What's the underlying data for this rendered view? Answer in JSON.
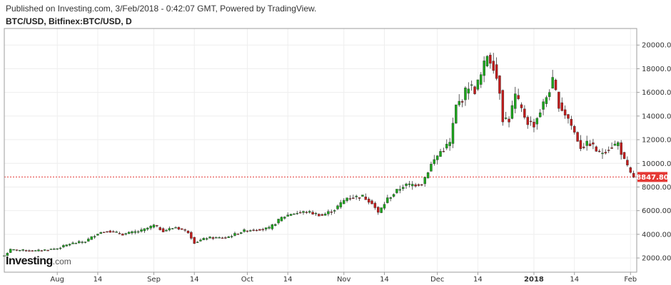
{
  "header": {
    "published": "Published on Investing.com, 3/Feb/2018 - 0:42:07 GMT, Powered by TradingView.",
    "symbol": "BTC/USD, Bitfinex:BTC/USD, D"
  },
  "logo": {
    "brand": "Investing",
    "suffix": ".com"
  },
  "colors": {
    "up": "#1ba51b",
    "down": "#c11b1b",
    "wick": "#333333",
    "grid": "#eeeeee",
    "price_line": "#e53935",
    "price_tag": "#e53935"
  },
  "chart_data": {
    "type": "candlestick",
    "y_ticks": [
      "2000.00",
      "4000.00",
      "6000.00",
      "8000.00",
      "10000.00",
      "12000.00",
      "14000.00",
      "16000.00",
      "18000.00",
      "20000.00"
    ],
    "ylim": [
      800,
      21400
    ],
    "x_ticks": [
      {
        "label": "Aug",
        "date": "2017-08-01"
      },
      {
        "label": "14",
        "date": "2017-08-14"
      },
      {
        "label": "Sep",
        "date": "2017-09-01"
      },
      {
        "label": "14",
        "date": "2017-09-14"
      },
      {
        "label": "Oct",
        "date": "2017-10-01"
      },
      {
        "label": "14",
        "date": "2017-10-14"
      },
      {
        "label": "Nov",
        "date": "2017-11-01"
      },
      {
        "label": "14",
        "date": "2017-11-14"
      },
      {
        "label": "Dec",
        "date": "2017-12-01"
      },
      {
        "label": "14",
        "date": "2017-12-14"
      },
      {
        "label": "2018",
        "date": "2018-01-01",
        "bold": true
      },
      {
        "label": "14",
        "date": "2018-01-14"
      },
      {
        "label": "Feb",
        "date": "2018-02-01"
      }
    ],
    "x_range": [
      "2017-07-15",
      "2018-02-03"
    ],
    "last_price": "8847.80",
    "last_price_value": 8847.8,
    "anchors": [
      [
        "2017-07-15",
        2200
      ],
      [
        "2017-07-17",
        2700
      ],
      [
        "2017-07-25",
        2600
      ],
      [
        "2017-08-01",
        2800
      ],
      [
        "2017-08-05",
        3200
      ],
      [
        "2017-08-10",
        3400
      ],
      [
        "2017-08-14",
        4100
      ],
      [
        "2017-08-17",
        4300
      ],
      [
        "2017-08-22",
        4000
      ],
      [
        "2017-08-28",
        4300
      ],
      [
        "2017-09-01",
        4750
      ],
      [
        "2017-09-04",
        4300
      ],
      [
        "2017-09-08",
        4600
      ],
      [
        "2017-09-12",
        4200
      ],
      [
        "2017-09-14",
        3300
      ],
      [
        "2017-09-18",
        3700
      ],
      [
        "2017-09-24",
        3700
      ],
      [
        "2017-09-30",
        4300
      ],
      [
        "2017-10-03",
        4400
      ],
      [
        "2017-10-08",
        4500
      ],
      [
        "2017-10-12",
        5400
      ],
      [
        "2017-10-15",
        5750
      ],
      [
        "2017-10-20",
        5900
      ],
      [
        "2017-10-25",
        5600
      ],
      [
        "2017-10-29",
        6100
      ],
      [
        "2017-11-02",
        7100
      ],
      [
        "2017-11-07",
        7200
      ],
      [
        "2017-11-10",
        6700
      ],
      [
        "2017-11-12",
        5800
      ],
      [
        "2017-11-15",
        7000
      ],
      [
        "2017-11-20",
        8100
      ],
      [
        "2017-11-26",
        8300
      ],
      [
        "2017-11-29",
        9900
      ],
      [
        "2017-12-02",
        11000
      ],
      [
        "2017-12-05",
        11700
      ],
      [
        "2017-12-07",
        14800
      ],
      [
        "2017-12-09",
        15500
      ],
      [
        "2017-12-11",
        16600
      ],
      [
        "2017-12-13",
        16200
      ],
      [
        "2017-12-15",
        17400
      ],
      [
        "2017-12-17",
        19200
      ],
      [
        "2017-12-19",
        18300
      ],
      [
        "2017-12-21",
        16200
      ],
      [
        "2017-12-22",
        13800
      ],
      [
        "2017-12-24",
        13700
      ],
      [
        "2017-12-26",
        15700
      ],
      [
        "2017-12-28",
        14500
      ],
      [
        "2017-12-30",
        13500
      ],
      [
        "2018-01-01",
        13300
      ],
      [
        "2018-01-04",
        15000
      ],
      [
        "2018-01-07",
        16900
      ],
      [
        "2018-01-09",
        15000
      ],
      [
        "2018-01-12",
        13800
      ],
      [
        "2018-01-16",
        11400
      ],
      [
        "2018-01-19",
        11700
      ],
      [
        "2018-01-22",
        10800
      ],
      [
        "2018-01-25",
        11300
      ],
      [
        "2018-01-28",
        11700
      ],
      [
        "2018-01-30",
        10200
      ],
      [
        "2018-02-01",
        9100
      ],
      [
        "2018-02-02",
        8847.8
      ]
    ]
  }
}
